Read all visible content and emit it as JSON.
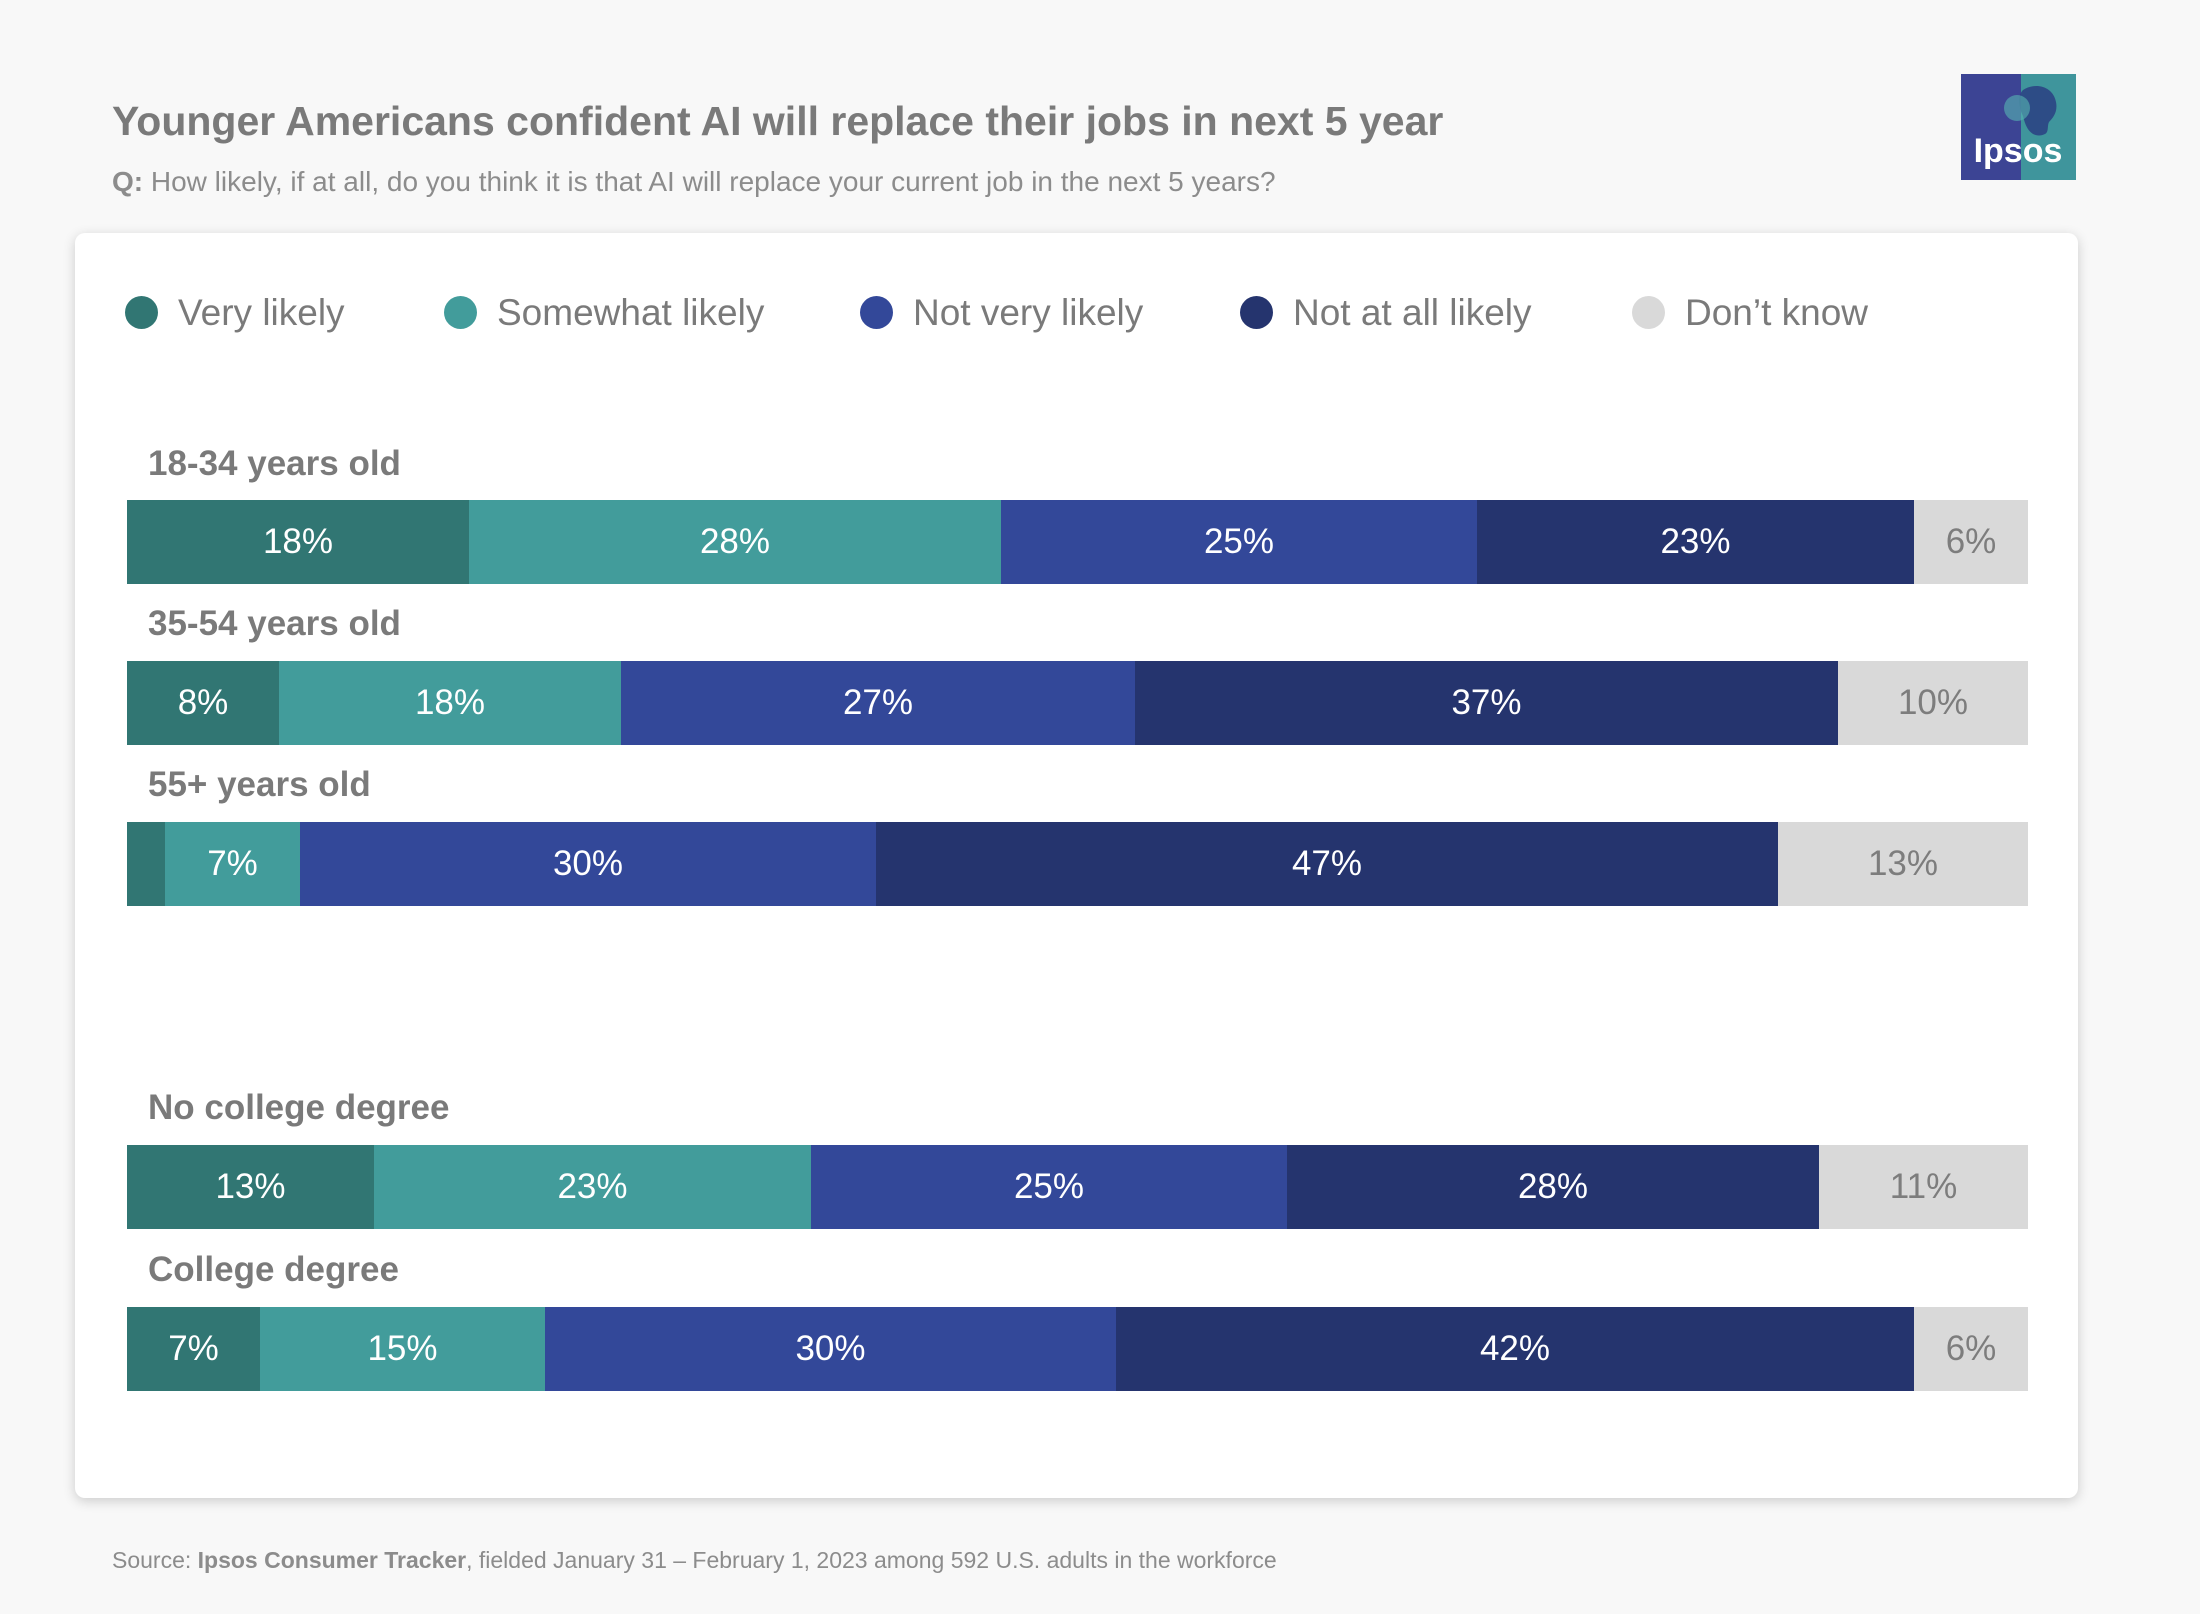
{
  "header": {
    "title": "Younger Americans confident AI will replace their jobs in next 5 year",
    "question_prefix": "Q:",
    "question": "How likely, if at all, do you think it is that AI will replace your current job in the next 5 years?",
    "logo_text": "Ipsos"
  },
  "colors": {
    "very_likely": "#317673",
    "somewhat_likely": "#429c9b",
    "not_very_likely": "#334899",
    "not_at_all_likely": "#25346e",
    "dont_know": "#d9d9d9"
  },
  "chart_data": {
    "type": "bar",
    "orientation": "horizontal",
    "stacked": true,
    "normalized": true,
    "legend_position": "top",
    "series_names": [
      "Very likely",
      "Somewhat likely",
      "Not very likely",
      "Not at all likely",
      "Don’t know"
    ],
    "groups": [
      {
        "label": "18-34 years old",
        "values": [
          18,
          28,
          25,
          23,
          6
        ],
        "labels": [
          "18%",
          "28%",
          "25%",
          "23%",
          "6%"
        ]
      },
      {
        "label": "35-54 years old",
        "values": [
          8,
          18,
          27,
          37,
          10
        ],
        "labels": [
          "8%",
          "18%",
          "27%",
          "37%",
          "10%"
        ]
      },
      {
        "label": "55+ years old",
        "values": [
          2,
          7,
          30,
          47,
          13
        ],
        "labels": [
          "",
          "7%",
          "30%",
          "47%",
          "13%"
        ]
      },
      {
        "label": "No college degree",
        "values": [
          13,
          23,
          25,
          28,
          11
        ],
        "labels": [
          "13%",
          "23%",
          "25%",
          "28%",
          "11%"
        ]
      },
      {
        "label": "College degree",
        "values": [
          7,
          15,
          30,
          42,
          6
        ],
        "labels": [
          "7%",
          "15%",
          "30%",
          "42%",
          "6%"
        ]
      }
    ]
  },
  "footer": {
    "source_prefix": "Source: ",
    "source_bold": "Ipsos Consumer Tracker",
    "source_rest": ", fielded January 31 – February 1, 2023 among 592 U.S. adults in the workforce"
  }
}
